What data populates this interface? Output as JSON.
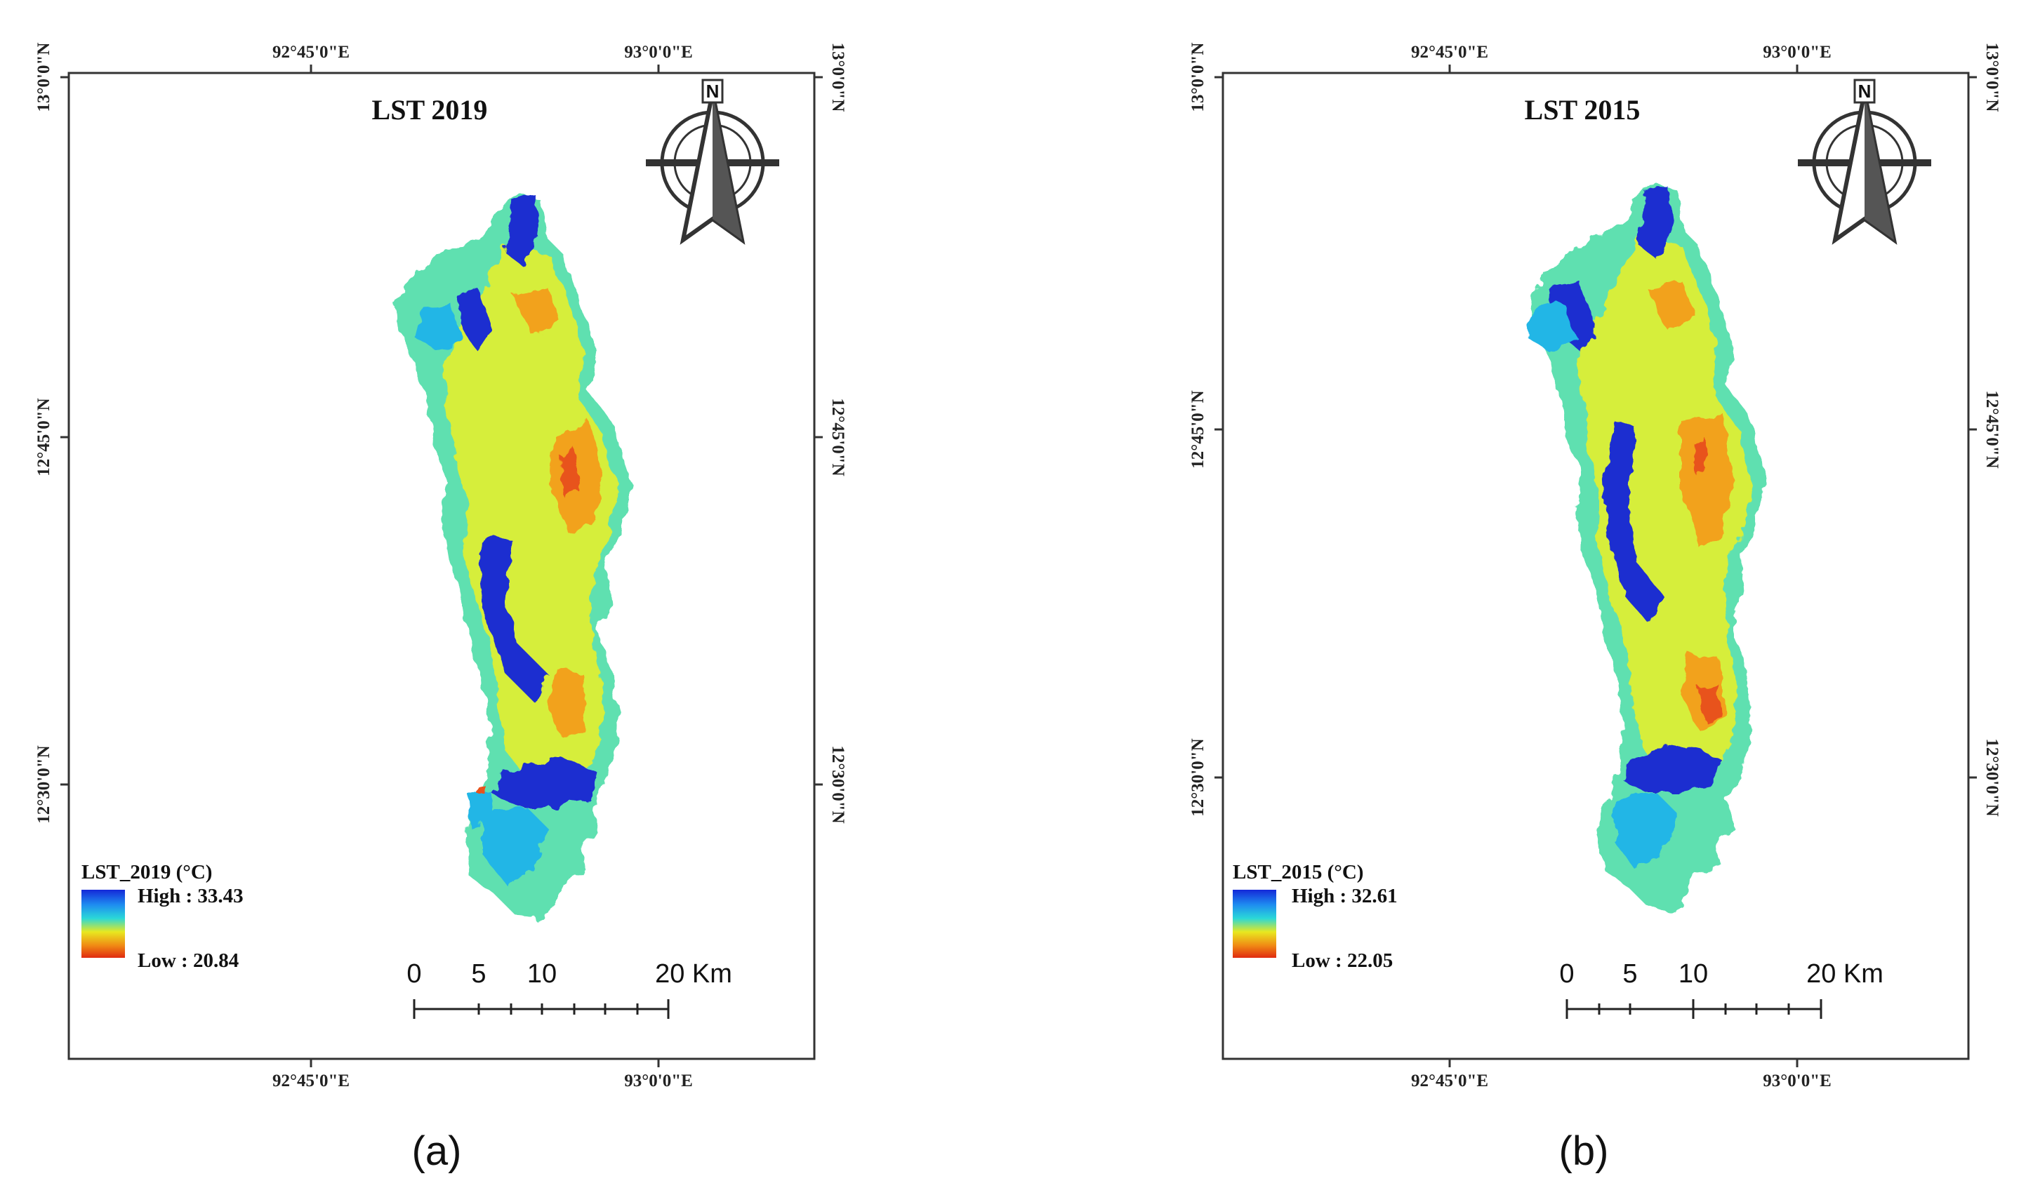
{
  "figure": {
    "panels": [
      {
        "id": "a",
        "caption": "(a)",
        "map_title": "LST 2019",
        "top_ticks": [
          "92°45'0\"E",
          "93°0'0\"E"
        ],
        "bottom_ticks": [
          "92°45'0\"E",
          "93°0'0\"E"
        ],
        "left_ticks": [
          "13°0'0\"N",
          "12°45'0\"N",
          "12°30'0\"N"
        ],
        "right_ticks": [
          "13°0'0\"N",
          "12°45'0\"N",
          "12°30'0\"N"
        ],
        "north_letter": "N",
        "legend": {
          "title": "LST_2019 (°C)",
          "high_label": "High : 33.43",
          "low_label": "Low : 20.84",
          "gradient_colors": [
            "#1428d8",
            "#1e8cf0",
            "#2ad8d8",
            "#e8e820",
            "#f08a14",
            "#e02a10"
          ]
        },
        "scale_bar": {
          "labels": [
            "0",
            "5",
            "10",
            "20 Km"
          ]
        }
      },
      {
        "id": "b",
        "caption": "(b)",
        "map_title": "LST 2015",
        "top_ticks": [
          "92°45'0\"E",
          "93°0'0\"E"
        ],
        "bottom_ticks": [
          "92°45'0\"E",
          "93°0'0\"E"
        ],
        "left_ticks": [
          "13°0'0\"N",
          "12°45'0\"N",
          "12°30'0\"N"
        ],
        "right_ticks": [
          "13°0'0\"N",
          "12°45'0\"N",
          "12°30'0\"N"
        ],
        "north_letter": "N",
        "legend": {
          "title": "LST_2015 (°C)",
          "high_label": "High : 32.61",
          "low_label": "Low : 22.05",
          "gradient_colors": [
            "#1428d8",
            "#1e8cf0",
            "#2ad8d8",
            "#e8e820",
            "#f08a14",
            "#e02a10"
          ]
        },
        "scale_bar": {
          "labels": [
            "0",
            "5",
            "10",
            "20 Km"
          ]
        }
      }
    ],
    "map_colors": {
      "cold": "#1a2fd0",
      "cool": "#22b6e6",
      "mild": "#5fe0b0",
      "warm": "#d6ee3a",
      "hot": "#f2a21e",
      "hottest": "#e8521a"
    }
  }
}
